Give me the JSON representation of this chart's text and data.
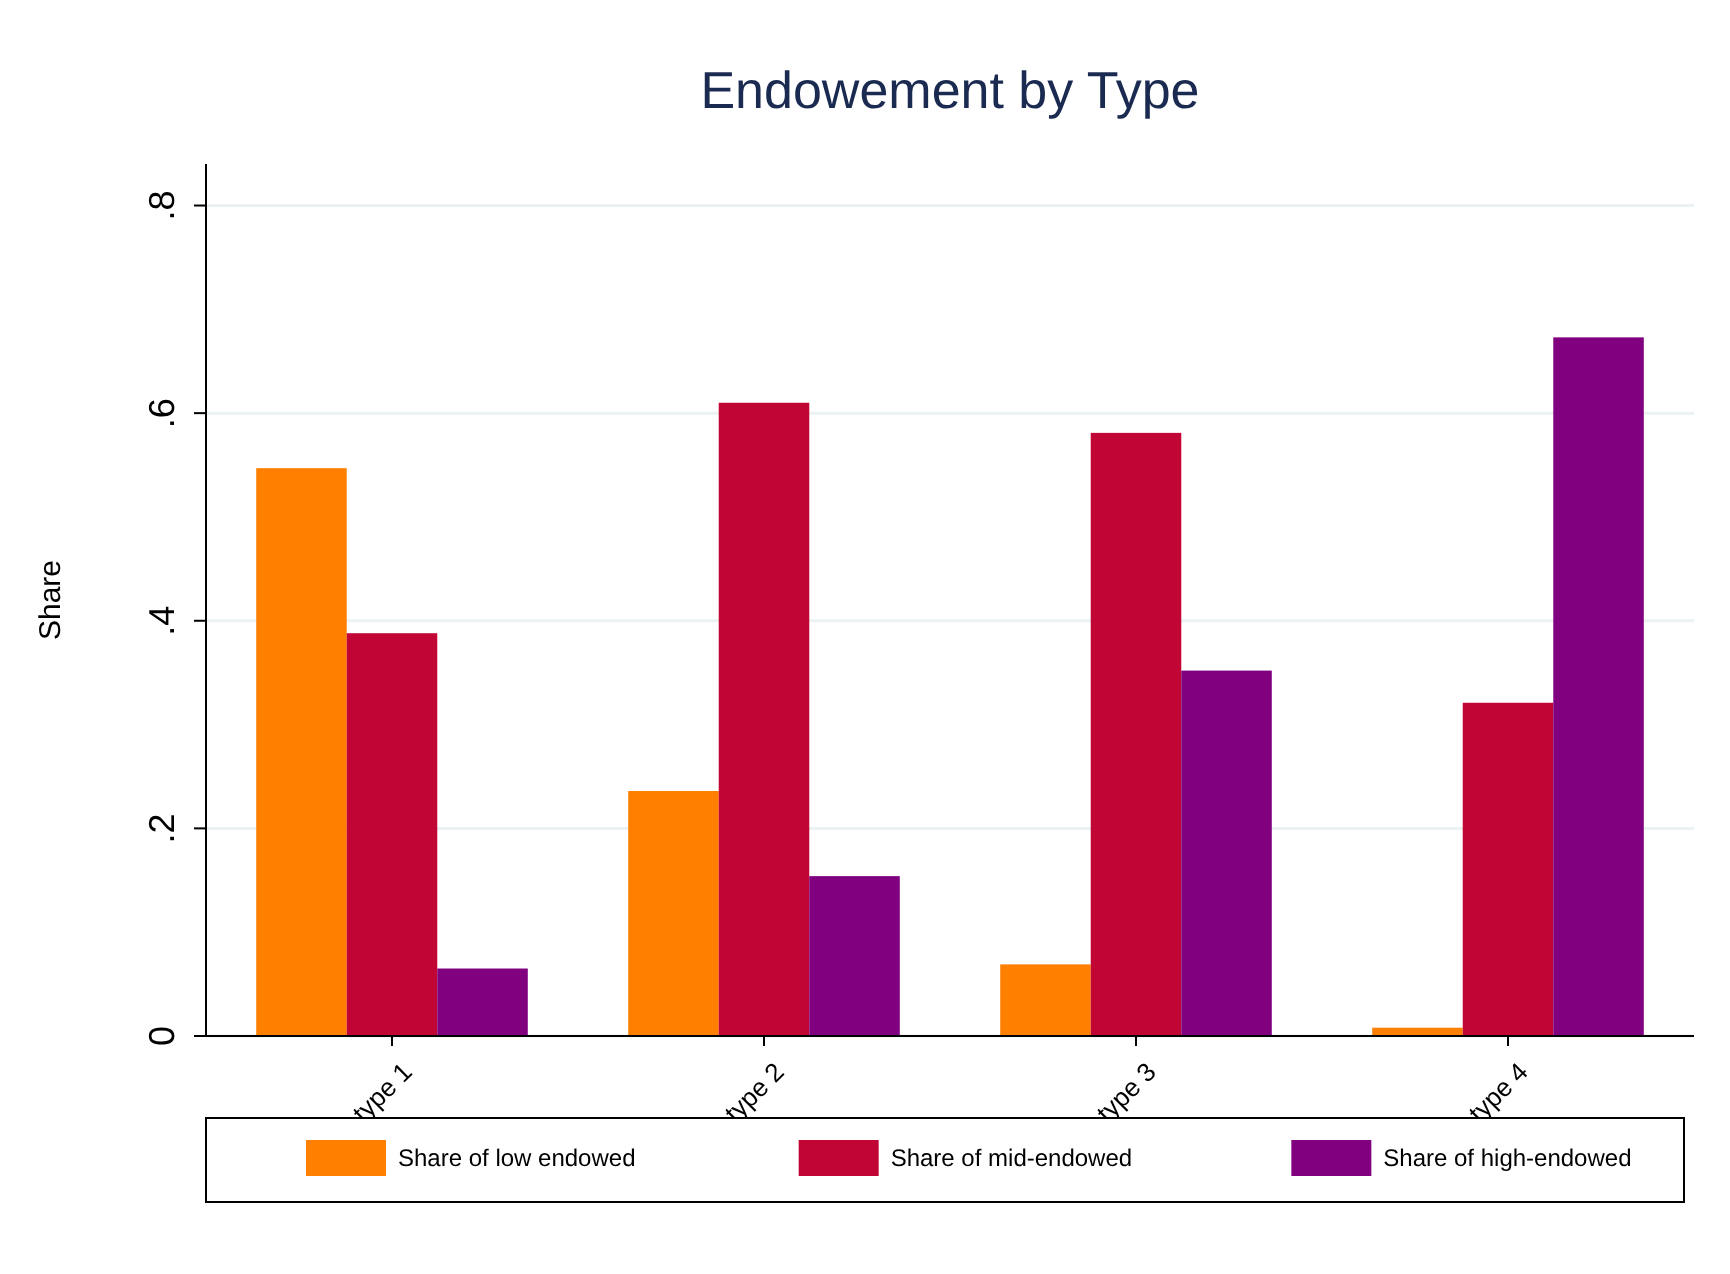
{
  "chart_data": {
    "type": "bar",
    "title": "Endowement by Type",
    "ylabel": "Share",
    "categories": [
      "type 1",
      "type 2",
      "type 3",
      "type 4"
    ],
    "series": [
      {
        "name": "Share of low endowed",
        "color": "#ff7f00",
        "values": [
          0.547,
          0.236,
          0.069,
          0.008
        ]
      },
      {
        "name": "Share of mid-endowed",
        "color": "#c10534",
        "values": [
          0.388,
          0.61,
          0.581,
          0.321
        ]
      },
      {
        "name": "Share of high-endowed",
        "color": "#800080",
        "values": [
          0.065,
          0.154,
          0.352,
          0.673
        ]
      }
    ],
    "ylim": [
      0,
      0.84
    ],
    "yticks": [
      {
        "value": 0,
        "label": "0"
      },
      {
        "value": 0.2,
        "label": ".2"
      },
      {
        "value": 0.4,
        "label": ".4"
      },
      {
        "value": 0.6,
        "label": ".6"
      },
      {
        "value": 0.8,
        "label": ".8"
      }
    ],
    "grid": "y",
    "legend": "bottom"
  }
}
